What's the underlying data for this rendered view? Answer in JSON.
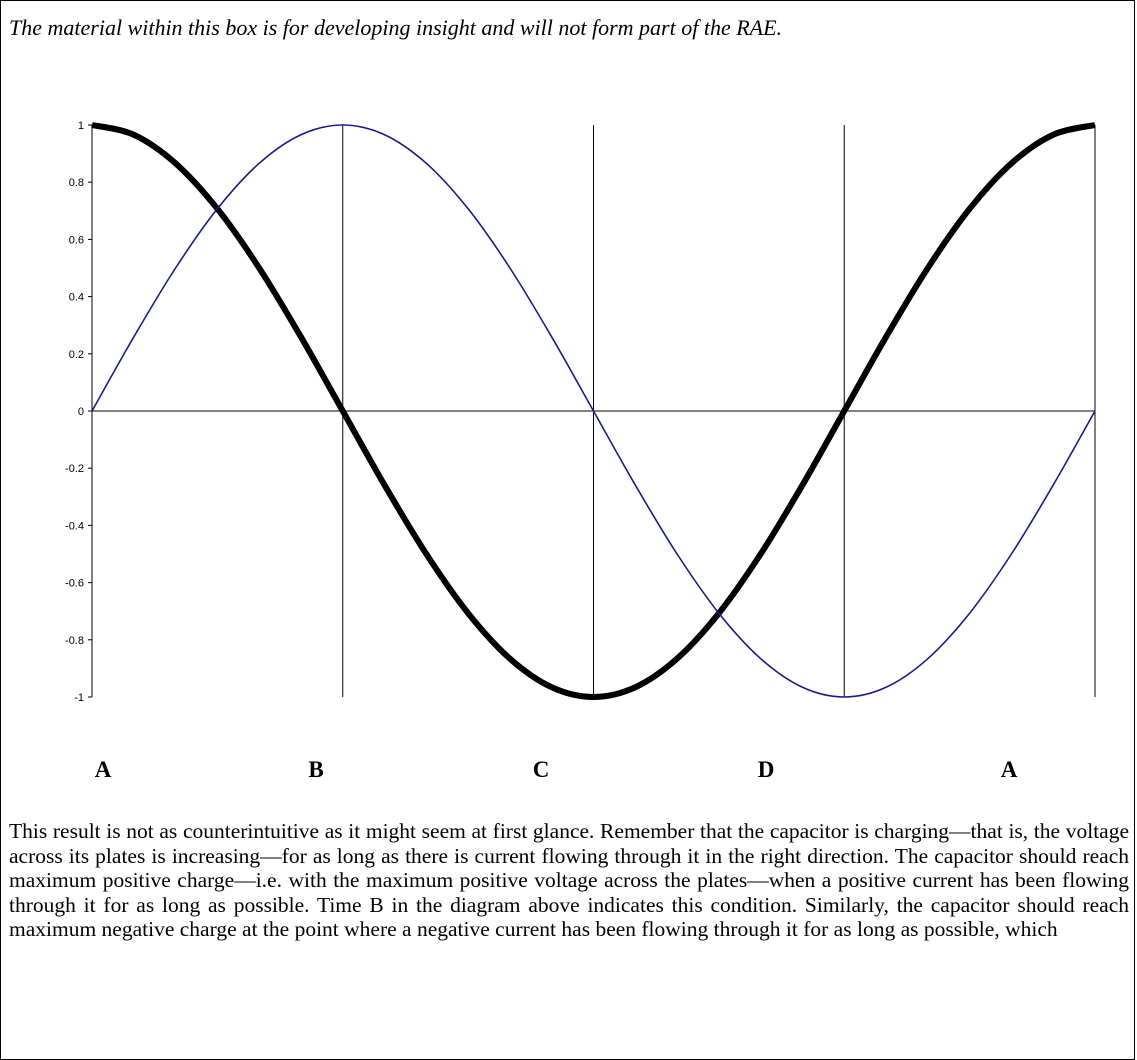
{
  "note": "The material within this box is for developing insight and will not form part of the RAE.",
  "chart_data": {
    "type": "line",
    "title": "",
    "xlabel": "",
    "ylabel": "",
    "xlim": [
      0,
      360
    ],
    "ylim": [
      -1,
      1
    ],
    "y_ticks": [
      "1",
      "0.8",
      "0.6",
      "0.4",
      "0.2",
      "0",
      "-0.2",
      "-0.4",
      "-0.6",
      "-0.8",
      "-1"
    ],
    "y_tick_values": [
      1,
      0.8,
      0.6,
      0.4,
      0.2,
      0,
      -0.2,
      -0.4,
      -0.6,
      -0.8,
      -1
    ],
    "vertical_gridlines_x": [
      90,
      180,
      270,
      360
    ],
    "grid": "vertical only",
    "legend": "none",
    "series": [
      {
        "style": "thick black",
        "color": "#000000",
        "x": [
          0,
          15,
          30,
          45,
          60,
          75,
          90,
          105,
          120,
          135,
          150,
          165,
          180,
          195,
          210,
          225,
          240,
          255,
          270,
          285,
          300,
          315,
          330,
          345,
          360
        ],
        "values": [
          1,
          0.966,
          0.866,
          0.707,
          0.5,
          0.259,
          0,
          -0.259,
          -0.5,
          -0.707,
          -0.866,
          -0.966,
          -1,
          -0.966,
          -0.866,
          -0.707,
          -0.5,
          -0.259,
          0,
          0.259,
          0.5,
          0.707,
          0.866,
          0.966,
          1
        ]
      },
      {
        "style": "thin blue",
        "color": "#1a1a8c",
        "x": [
          0,
          15,
          30,
          45,
          60,
          75,
          90,
          105,
          120,
          135,
          150,
          165,
          180,
          195,
          210,
          225,
          240,
          255,
          270,
          285,
          300,
          315,
          330,
          345,
          360
        ],
        "values": [
          0,
          0.259,
          0.5,
          0.707,
          0.866,
          0.966,
          1,
          0.966,
          0.866,
          0.707,
          0.5,
          0.259,
          0,
          -0.259,
          -0.5,
          -0.707,
          -0.866,
          -0.966,
          -1,
          -0.966,
          -0.866,
          -0.707,
          -0.5,
          -0.259,
          0
        ]
      }
    ]
  },
  "markers": [
    "A",
    "B",
    "C",
    "D",
    "A"
  ],
  "paragraph": "This result is not as counterintuitive as it might seem at first glance. Remember that the capacitor is charging—that is, the voltage across its plates is increasing—for as long as there is current flowing through it in the right direction. The capacitor should reach maximum positive charge—i.e. with the maximum positive voltage across the plates—when a positive current has been flowing through it for as long as possible. Time B in the diagram above indicates this condition. Similarly, the capacitor should reach maximum negative charge at the point where a negative current has been flowing through it for as long as possible, which"
}
